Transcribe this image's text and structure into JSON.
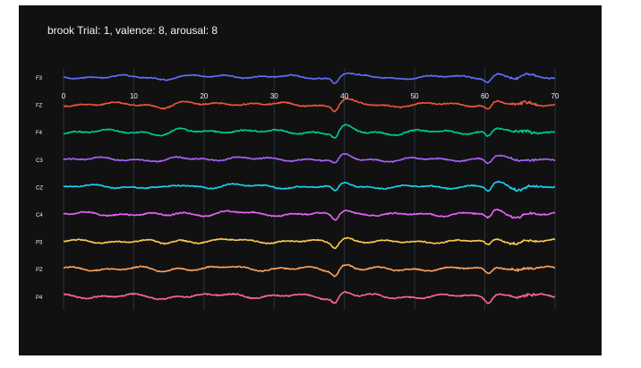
{
  "chart_data": {
    "type": "line",
    "title": "brook Trial: 1, valence: 8, arousal: 8",
    "xlabel": "",
    "ylabel": "",
    "xlim": [
      0,
      70
    ],
    "xticks": [
      0,
      10,
      20,
      30,
      40,
      50,
      60,
      70
    ],
    "grid": true,
    "legend": "none",
    "series": [
      {
        "name": "F3",
        "color": "#636efa"
      },
      {
        "name": "FZ",
        "color": "#ef553b"
      },
      {
        "name": "F4",
        "color": "#00cc96"
      },
      {
        "name": "C3",
        "color": "#ab63fa"
      },
      {
        "name": "CZ",
        "color": "#19d3f3"
      },
      {
        "name": "C4",
        "color": "#e763fa"
      },
      {
        "name": "P3",
        "color": "#fecb52"
      },
      {
        "name": "PZ",
        "color": "#ffa15a"
      },
      {
        "name": "P4",
        "color": "#ff6692"
      }
    ]
  }
}
